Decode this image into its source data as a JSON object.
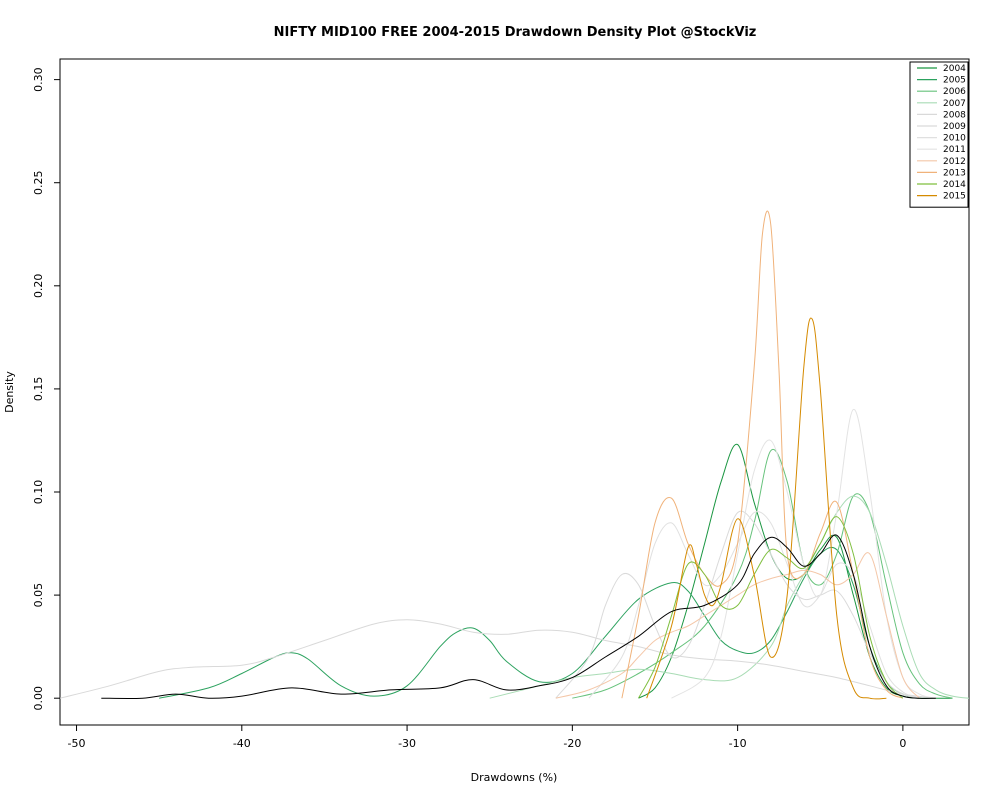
{
  "chart_data": {
    "type": "line",
    "title": "NIFTY MID100 FREE 2004-2015 Drawdown Density Plot @StockViz",
    "xlabel": "Drawdowns (%)",
    "ylabel": "Density",
    "xlim": [
      -51,
      4
    ],
    "ylim": [
      -0.013,
      0.31
    ],
    "xticks": [
      -50,
      -40,
      -30,
      -20,
      -10,
      0
    ],
    "yticks": [
      0.0,
      0.05,
      0.1,
      0.15,
      0.2,
      0.25,
      0.3
    ],
    "xtick_labels": [
      "-50",
      "-40",
      "-30",
      "-20",
      "-10",
      "0"
    ],
    "ytick_labels": [
      "0.00",
      "0.05",
      "0.10",
      "0.15",
      "0.20",
      "0.25",
      "0.30"
    ],
    "grid": false,
    "legend_position": "top-right",
    "series": [
      {
        "name": "2004",
        "color": "#1a9641",
        "x": [
          -16,
          -15,
          -14,
          -13,
          -12,
          -11,
          -10,
          -9,
          -8,
          -7,
          -6,
          -5,
          -4,
          -3,
          -2,
          -1,
          0,
          1,
          2,
          3
        ],
        "y": [
          0.0,
          0.005,
          0.02,
          0.045,
          0.075,
          0.105,
          0.123,
          0.095,
          0.07,
          0.058,
          0.06,
          0.072,
          0.078,
          0.05,
          0.02,
          0.005,
          0.001,
          0.0,
          0.0,
          0.0
        ]
      },
      {
        "name": "2005",
        "color": "#2ca25f",
        "x": [
          -45,
          -42,
          -40,
          -38,
          -37,
          -36,
          -34,
          -32,
          -30,
          -28,
          -27,
          -26,
          -25,
          -24,
          -22,
          -20,
          -18,
          -16,
          -14,
          -13,
          -12,
          -11,
          -10,
          -9,
          -8,
          -7,
          -6,
          -5,
          -4,
          -3,
          -2,
          -1,
          0,
          1
        ],
        "y": [
          0.0,
          0.005,
          0.012,
          0.02,
          0.022,
          0.019,
          0.006,
          0.001,
          0.006,
          0.025,
          0.032,
          0.034,
          0.028,
          0.018,
          0.008,
          0.012,
          0.03,
          0.048,
          0.056,
          0.052,
          0.04,
          0.028,
          0.023,
          0.022,
          0.028,
          0.042,
          0.058,
          0.07,
          0.072,
          0.055,
          0.025,
          0.008,
          0.002,
          0.0
        ]
      },
      {
        "name": "2006",
        "color": "#66c27b",
        "x": [
          -20,
          -18,
          -16,
          -14,
          -12,
          -10,
          -9,
          -8,
          -7,
          -6,
          -5,
          -4,
          -3,
          -2,
          -1,
          0,
          1,
          2,
          3
        ],
        "y": [
          0.0,
          0.004,
          0.012,
          0.022,
          0.035,
          0.06,
          0.085,
          0.12,
          0.105,
          0.065,
          0.055,
          0.07,
          0.098,
          0.09,
          0.055,
          0.022,
          0.007,
          0.002,
          0.0
        ]
      },
      {
        "name": "2007",
        "color": "#a9dcb5",
        "x": [
          -25,
          -22,
          -20,
          -18,
          -16,
          -14,
          -12,
          -10,
          -8,
          -7,
          -6,
          -5,
          -4,
          -3,
          -2,
          -1,
          0,
          1,
          2,
          3,
          4
        ],
        "y": [
          0.0,
          0.006,
          0.01,
          0.012,
          0.014,
          0.012,
          0.009,
          0.01,
          0.025,
          0.045,
          0.06,
          0.075,
          0.09,
          0.098,
          0.09,
          0.065,
          0.035,
          0.012,
          0.004,
          0.001,
          0.0
        ]
      },
      {
        "name": "2008",
        "color": "#d9d9d9",
        "x": [
          -51,
          -48,
          -45,
          -43,
          -40,
          -38,
          -35,
          -32,
          -30,
          -28,
          -26,
          -24,
          -22,
          -20,
          -18,
          -16,
          -14,
          -12,
          -10,
          -8,
          -6,
          -4,
          -2,
          0,
          2
        ],
        "y": [
          0.0,
          0.006,
          0.013,
          0.015,
          0.016,
          0.02,
          0.028,
          0.036,
          0.038,
          0.036,
          0.032,
          0.031,
          0.033,
          0.032,
          0.028,
          0.025,
          0.021,
          0.019,
          0.018,
          0.016,
          0.013,
          0.01,
          0.006,
          0.002,
          0.0
        ]
      },
      {
        "name": "2009",
        "color": "#dadada",
        "x": [
          -21,
          -19,
          -18,
          -17,
          -16,
          -15,
          -14,
          -13,
          -12,
          -11,
          -10,
          -9,
          -8,
          -7,
          -6,
          -5,
          -4,
          -3,
          -2,
          -1,
          0,
          1
        ],
        "y": [
          0.0,
          0.02,
          0.045,
          0.06,
          0.055,
          0.035,
          0.02,
          0.025,
          0.045,
          0.07,
          0.09,
          0.085,
          0.07,
          0.055,
          0.048,
          0.05,
          0.052,
          0.04,
          0.022,
          0.008,
          0.002,
          0.0
        ]
      },
      {
        "name": "2010",
        "color": "#e0e0e0",
        "x": [
          -19,
          -17,
          -16,
          -15,
          -14,
          -13,
          -12,
          -11,
          -10,
          -9,
          -8,
          -7,
          -6,
          -5,
          -4,
          -3,
          -2,
          -1,
          0,
          1
        ],
        "y": [
          0.0,
          0.02,
          0.045,
          0.075,
          0.085,
          0.07,
          0.055,
          0.06,
          0.075,
          0.09,
          0.085,
          0.065,
          0.045,
          0.05,
          0.065,
          0.06,
          0.035,
          0.012,
          0.003,
          0.0
        ]
      },
      {
        "name": "2011",
        "color": "#e3e3e3",
        "x": [
          -14,
          -12,
          -11,
          -10,
          -9,
          -8,
          -7,
          -6,
          -5,
          -4,
          -3,
          -2,
          -1,
          0,
          1,
          2
        ],
        "y": [
          0.0,
          0.01,
          0.03,
          0.07,
          0.11,
          0.125,
          0.1,
          0.065,
          0.05,
          0.09,
          0.14,
          0.1,
          0.04,
          0.01,
          0.002,
          0.0
        ]
      },
      {
        "name": "2012",
        "color": "#f4c7a8",
        "x": [
          -21,
          -19,
          -17,
          -16,
          -15,
          -14,
          -13,
          -12,
          -11,
          -10,
          -9,
          -8,
          -7,
          -6,
          -5,
          -4,
          -3,
          -2,
          -1,
          0,
          1
        ],
        "y": [
          0.0,
          0.004,
          0.012,
          0.02,
          0.028,
          0.032,
          0.035,
          0.04,
          0.045,
          0.05,
          0.055,
          0.058,
          0.06,
          0.062,
          0.06,
          0.055,
          0.06,
          0.07,
          0.04,
          0.01,
          0.0
        ]
      },
      {
        "name": "2013",
        "color": "#f0b27a",
        "x": [
          -17,
          -16,
          -15,
          -14,
          -13,
          -12,
          -11,
          -10,
          -9,
          -8.5,
          -8,
          -7.5,
          -7,
          -6,
          -5,
          -4,
          -3,
          -2,
          -1,
          0
        ],
        "y": [
          0.0,
          0.04,
          0.085,
          0.097,
          0.075,
          0.06,
          0.055,
          0.075,
          0.16,
          0.225,
          0.23,
          0.16,
          0.07,
          0.06,
          0.08,
          0.095,
          0.06,
          0.02,
          0.004,
          0.0
        ]
      },
      {
        "name": "2014",
        "color": "#7fbf3f",
        "x": [
          -16,
          -15,
          -14,
          -13,
          -12,
          -11,
          -10,
          -9,
          -8,
          -7,
          -6,
          -5,
          -4,
          -3,
          -2,
          -1,
          0
        ],
        "y": [
          0.0,
          0.015,
          0.04,
          0.065,
          0.06,
          0.045,
          0.045,
          0.06,
          0.072,
          0.068,
          0.063,
          0.075,
          0.088,
          0.07,
          0.03,
          0.008,
          0.0
        ]
      },
      {
        "name": "2015",
        "color": "#d58a00",
        "x": [
          -15.5,
          -14,
          -13,
          -12.5,
          -12,
          -11.5,
          -11,
          -10,
          -9,
          -8,
          -7,
          -6,
          -5.5,
          -5,
          -4,
          -3,
          -2,
          -1
        ],
        "y": [
          0.0,
          0.035,
          0.073,
          0.065,
          0.05,
          0.045,
          0.055,
          0.087,
          0.06,
          0.02,
          0.05,
          0.16,
          0.184,
          0.15,
          0.04,
          0.005,
          0.0,
          0.0
        ]
      },
      {
        "name": "",
        "color": "#000000",
        "x": [
          -48.5,
          -46,
          -44,
          -42,
          -40,
          -37,
          -34,
          -31,
          -28,
          -26,
          -24,
          -22,
          -20,
          -18,
          -16,
          -14,
          -12,
          -10,
          -9,
          -8,
          -7,
          -6,
          -5,
          -4,
          -3,
          -2,
          -1,
          0,
          1,
          2
        ],
        "y": [
          0.0,
          0.0,
          0.002,
          0.0,
          0.001,
          0.005,
          0.002,
          0.004,
          0.005,
          0.009,
          0.004,
          0.006,
          0.01,
          0.02,
          0.03,
          0.042,
          0.045,
          0.055,
          0.07,
          0.078,
          0.073,
          0.064,
          0.07,
          0.079,
          0.06,
          0.025,
          0.006,
          0.001,
          0.0,
          0.0
        ]
      }
    ]
  }
}
